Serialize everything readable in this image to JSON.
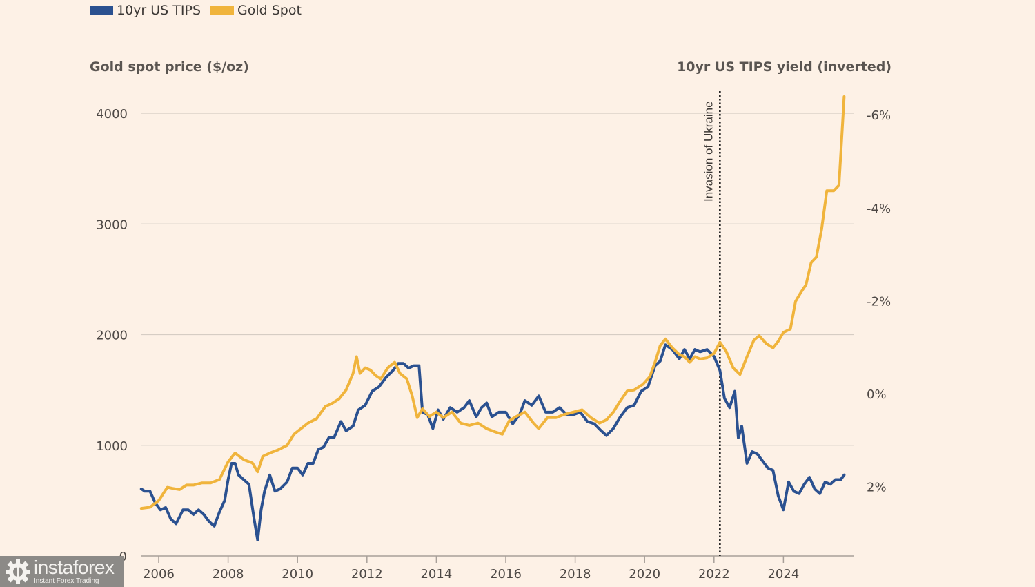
{
  "legend": [
    {
      "label": "10yr US TIPS",
      "color": "#2b5190"
    },
    {
      "label": "Gold Spot",
      "color": "#f0b43c"
    }
  ],
  "watermark": {
    "brand": "instaforex",
    "tagline": "Instant Forex Trading"
  },
  "chart_data": {
    "type": "line",
    "title": "",
    "left_axis_title": "Gold spot price ($/oz)",
    "right_axis_title": "10yr US TIPS yield (inverted)",
    "annotation": {
      "label": "Invasion of Ukraine",
      "x": 2022.17,
      "style": "dotted-vertical-line"
    },
    "x_ticks": [
      2006,
      2008,
      2010,
      2012,
      2014,
      2016,
      2018,
      2020,
      2022,
      2024
    ],
    "x_tick_labels": [
      "2006",
      "2008",
      "2010",
      "2012",
      "2014",
      "2016",
      "2018",
      "2020",
      "2022",
      "2024"
    ],
    "xlim": [
      2005.5,
      2026.0
    ],
    "left_ticks": [
      0,
      1000,
      2000,
      3000,
      4000
    ],
    "left_tick_labels": [
      "0",
      "1000",
      "2000",
      "3000",
      "4000"
    ],
    "left_ylim": [
      0,
      4000
    ],
    "right_ticks": [
      -6,
      -4,
      -2,
      0,
      2
    ],
    "right_tick_labels": [
      "-6%",
      "-4%",
      "-2%",
      "0%",
      "2%"
    ],
    "right_inverted": true,
    "grid": "horizontal",
    "legend_position": "top-left",
    "series": [
      {
        "name": "Gold Spot",
        "axis": "left",
        "color": "#f0b43c",
        "x": [
          2005.5,
          2005.75,
          2006.0,
          2006.25,
          2006.4,
          2006.6,
          2006.8,
          2007.0,
          2007.25,
          2007.5,
          2007.75,
          2008.0,
          2008.2,
          2008.45,
          2008.7,
          2008.85,
          2009.0,
          2009.2,
          2009.45,
          2009.7,
          2009.9,
          2010.1,
          2010.3,
          2010.55,
          2010.8,
          2011.0,
          2011.2,
          2011.4,
          2011.6,
          2011.7,
          2011.8,
          2011.95,
          2012.1,
          2012.25,
          2012.4,
          2012.6,
          2012.8,
          2012.95,
          2013.15,
          2013.3,
          2013.45,
          2013.6,
          2013.8,
          2014.0,
          2014.2,
          2014.45,
          2014.7,
          2014.95,
          2015.2,
          2015.45,
          2015.7,
          2015.9,
          2016.1,
          2016.3,
          2016.55,
          2016.8,
          2016.95,
          2017.2,
          2017.45,
          2017.7,
          2017.95,
          2018.2,
          2018.45,
          2018.7,
          2018.9,
          2019.1,
          2019.3,
          2019.5,
          2019.7,
          2019.95,
          2020.15,
          2020.3,
          2020.45,
          2020.6,
          2020.8,
          2021.0,
          2021.15,
          2021.3,
          2021.45,
          2021.6,
          2021.8,
          2022.0,
          2022.17,
          2022.35,
          2022.55,
          2022.75,
          2022.95,
          2023.15,
          2023.3,
          2023.5,
          2023.7,
          2023.85,
          2024.0,
          2024.2,
          2024.35,
          2024.5,
          2024.65,
          2024.8,
          2024.95,
          2025.1,
          2025.25,
          2025.45,
          2025.6,
          2025.75
        ],
        "values": [
          430,
          440,
          500,
          620,
          610,
          600,
          640,
          640,
          660,
          660,
          690,
          850,
          930,
          870,
          840,
          760,
          900,
          930,
          960,
          1000,
          1100,
          1150,
          1200,
          1240,
          1350,
          1380,
          1420,
          1500,
          1650,
          1800,
          1650,
          1700,
          1680,
          1630,
          1600,
          1700,
          1750,
          1650,
          1600,
          1450,
          1250,
          1330,
          1260,
          1300,
          1250,
          1300,
          1200,
          1180,
          1200,
          1150,
          1120,
          1100,
          1220,
          1260,
          1300,
          1200,
          1150,
          1250,
          1250,
          1280,
          1300,
          1320,
          1250,
          1200,
          1230,
          1300,
          1400,
          1490,
          1500,
          1550,
          1620,
          1750,
          1900,
          1960,
          1880,
          1820,
          1800,
          1750,
          1800,
          1780,
          1790,
          1830,
          1930,
          1850,
          1700,
          1640,
          1800,
          1950,
          1990,
          1920,
          1880,
          1940,
          2020,
          2050,
          2300,
          2380,
          2450,
          2650,
          2700,
          2950,
          3300,
          3300,
          3350,
          4150
        ]
      },
      {
        "name": "10yr US TIPS",
        "axis": "right",
        "color": "#2b5190",
        "x": [
          2005.5,
          2005.6,
          2005.75,
          2005.9,
          2006.05,
          2006.2,
          2006.35,
          2006.5,
          2006.7,
          2006.85,
          2007.0,
          2007.15,
          2007.3,
          2007.45,
          2007.6,
          2007.75,
          2007.9,
          2008.0,
          2008.1,
          2008.2,
          2008.3,
          2008.45,
          2008.6,
          2008.75,
          2008.85,
          2008.95,
          2009.05,
          2009.2,
          2009.35,
          2009.5,
          2009.7,
          2009.85,
          2010.0,
          2010.15,
          2010.3,
          2010.45,
          2010.6,
          2010.75,
          2010.9,
          2011.05,
          2011.25,
          2011.4,
          2011.6,
          2011.75,
          2011.95,
          2012.15,
          2012.35,
          2012.55,
          2012.75,
          2012.9,
          2013.05,
          2013.2,
          2013.35,
          2013.5,
          2013.6,
          2013.75,
          2013.9,
          2014.05,
          2014.2,
          2014.4,
          2014.6,
          2014.8,
          2014.95,
          2015.15,
          2015.3,
          2015.45,
          2015.6,
          2015.8,
          2016.0,
          2016.2,
          2016.4,
          2016.55,
          2016.75,
          2016.95,
          2017.15,
          2017.35,
          2017.55,
          2017.75,
          2017.95,
          2018.15,
          2018.35,
          2018.55,
          2018.75,
          2018.9,
          2019.1,
          2019.3,
          2019.5,
          2019.7,
          2019.9,
          2020.1,
          2020.3,
          2020.45,
          2020.6,
          2020.8,
          2021.0,
          2021.15,
          2021.3,
          2021.45,
          2021.6,
          2021.8,
          2022.0,
          2022.17,
          2022.3,
          2022.45,
          2022.6,
          2022.7,
          2022.8,
          2022.95,
          2023.1,
          2023.25,
          2023.4,
          2023.55,
          2023.7,
          2023.85,
          2024.0,
          2024.15,
          2024.3,
          2024.45,
          2024.6,
          2024.75,
          2024.9,
          2025.05,
          2025.2,
          2025.35,
          2025.5,
          2025.65,
          2025.75
        ],
        "values": [
          2.05,
          2.1,
          2.1,
          2.35,
          2.5,
          2.45,
          2.7,
          2.8,
          2.5,
          2.5,
          2.6,
          2.5,
          2.6,
          2.75,
          2.85,
          2.55,
          2.3,
          1.85,
          1.5,
          1.5,
          1.75,
          1.85,
          1.95,
          2.7,
          3.15,
          2.5,
          2.1,
          1.75,
          2.1,
          2.05,
          1.9,
          1.6,
          1.6,
          1.75,
          1.5,
          1.5,
          1.2,
          1.15,
          0.95,
          0.95,
          0.6,
          0.8,
          0.7,
          0.35,
          0.25,
          -0.05,
          -0.15,
          -0.35,
          -0.5,
          -0.65,
          -0.65,
          -0.55,
          -0.6,
          -0.6,
          0.4,
          0.45,
          0.75,
          0.35,
          0.55,
          0.3,
          0.4,
          0.3,
          0.15,
          0.5,
          0.3,
          0.2,
          0.5,
          0.4,
          0.4,
          0.65,
          0.45,
          0.15,
          0.25,
          0.05,
          0.4,
          0.4,
          0.3,
          0.45,
          0.45,
          0.4,
          0.6,
          0.65,
          0.8,
          0.9,
          0.75,
          0.5,
          0.3,
          0.25,
          -0.05,
          -0.15,
          -0.6,
          -0.7,
          -1.05,
          -0.95,
          -0.75,
          -0.95,
          -0.75,
          -0.95,
          -0.9,
          -0.95,
          -0.8,
          -0.5,
          0.1,
          0.3,
          -0.05,
          0.95,
          0.7,
          1.5,
          1.25,
          1.3,
          1.45,
          1.6,
          1.65,
          2.2,
          2.5,
          1.9,
          2.1,
          2.15,
          1.95,
          1.8,
          2.05,
          2.15,
          1.9,
          1.95,
          1.85,
          1.85,
          1.75
        ]
      }
    ]
  }
}
